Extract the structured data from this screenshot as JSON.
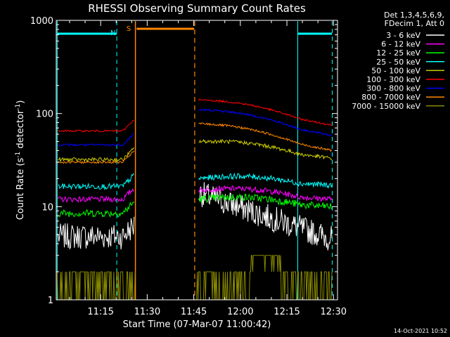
{
  "chart_data": {
    "type": "line",
    "title": "RHESSI Observing Summary Count Rates",
    "xlabel": "Start Time (07-Mar-07 11:00:42)",
    "ylabel_main": "Count Rate (s",
    "ylabel_sup1": "-1",
    "ylabel_mid": " detector",
    "ylabel_sup2": "-1",
    "ylabel_end": ")",
    "yscale": "log",
    "ylim": [
      1,
      1000
    ],
    "y_ticks": [
      "1",
      "10",
      "100",
      "1000"
    ],
    "xlim_min": [
      0.7,
      91.3
    ],
    "x_ticks": [
      {
        "min": 15,
        "label": "11:15"
      },
      {
        "min": 30,
        "label": "11:30"
      },
      {
        "min": 45,
        "label": "11:45"
      },
      {
        "min": 60,
        "label": "12:00"
      },
      {
        "min": 75,
        "label": "12:15"
      },
      {
        "min": 90,
        "label": "12:30"
      }
    ],
    "legend_title_1": "Det 1,3,4,5,6,9,",
    "legend_title_2": "FDecim 1, Att 0",
    "gap_min": [
      26.2,
      45.3
    ],
    "series": [
      {
        "name": "3 - 6 keV",
        "color": "#ffffff",
        "before": 4.8,
        "after": 14.0,
        "end": 4.5,
        "shape": "decay",
        "noise": 0.14
      },
      {
        "name": "6 - 12 keV",
        "color": "#ff00ff",
        "before": 12.0,
        "after": 15.0,
        "end": 12.0,
        "shape": "hump",
        "noise": 0.03
      },
      {
        "name": "12 - 25 keV",
        "color": "#00ff00",
        "before": 8.5,
        "after": 12.0,
        "end": 10.0,
        "shape": "hump",
        "noise": 0.04
      },
      {
        "name": "25 - 50 keV",
        "color": "#00ffff",
        "before": 16.5,
        "after": 20.0,
        "end": 17.0,
        "shape": "hump",
        "noise": 0.03
      },
      {
        "name": "50 - 100 keV",
        "color": "#cccc00",
        "before": 32.0,
        "after": 50.0,
        "end": 33.0,
        "shape": "hump",
        "noise": 0.02
      },
      {
        "name": "100 - 300 keV",
        "color": "#ff0000",
        "before": 65.0,
        "after": 140.0,
        "end": 75.0,
        "shape": "hump",
        "noise": 0.01
      },
      {
        "name": "300 - 800 keV",
        "color": "#0000ff",
        "before": 46.0,
        "after": 110.0,
        "end": 58.0,
        "shape": "hump",
        "noise": 0.012
      },
      {
        "name": "800 - 7000 keV",
        "color": "#ff8800",
        "before": 30.0,
        "after": 78.0,
        "end": 40.0,
        "shape": "hump",
        "noise": 0.012
      },
      {
        "name": "7000 - 15000 keV",
        "color": "#888800",
        "before": 1.0,
        "after": 1.0,
        "end": 1.0,
        "shape": "steps",
        "noise": 0.0
      }
    ],
    "flags": [
      {
        "label": "N",
        "color": "#00ffff",
        "min": 19.0
      },
      {
        "label": "S",
        "color": "#ff8800",
        "min": 24.0
      }
    ],
    "timestamp": "14-Oct-2021 10:52"
  }
}
